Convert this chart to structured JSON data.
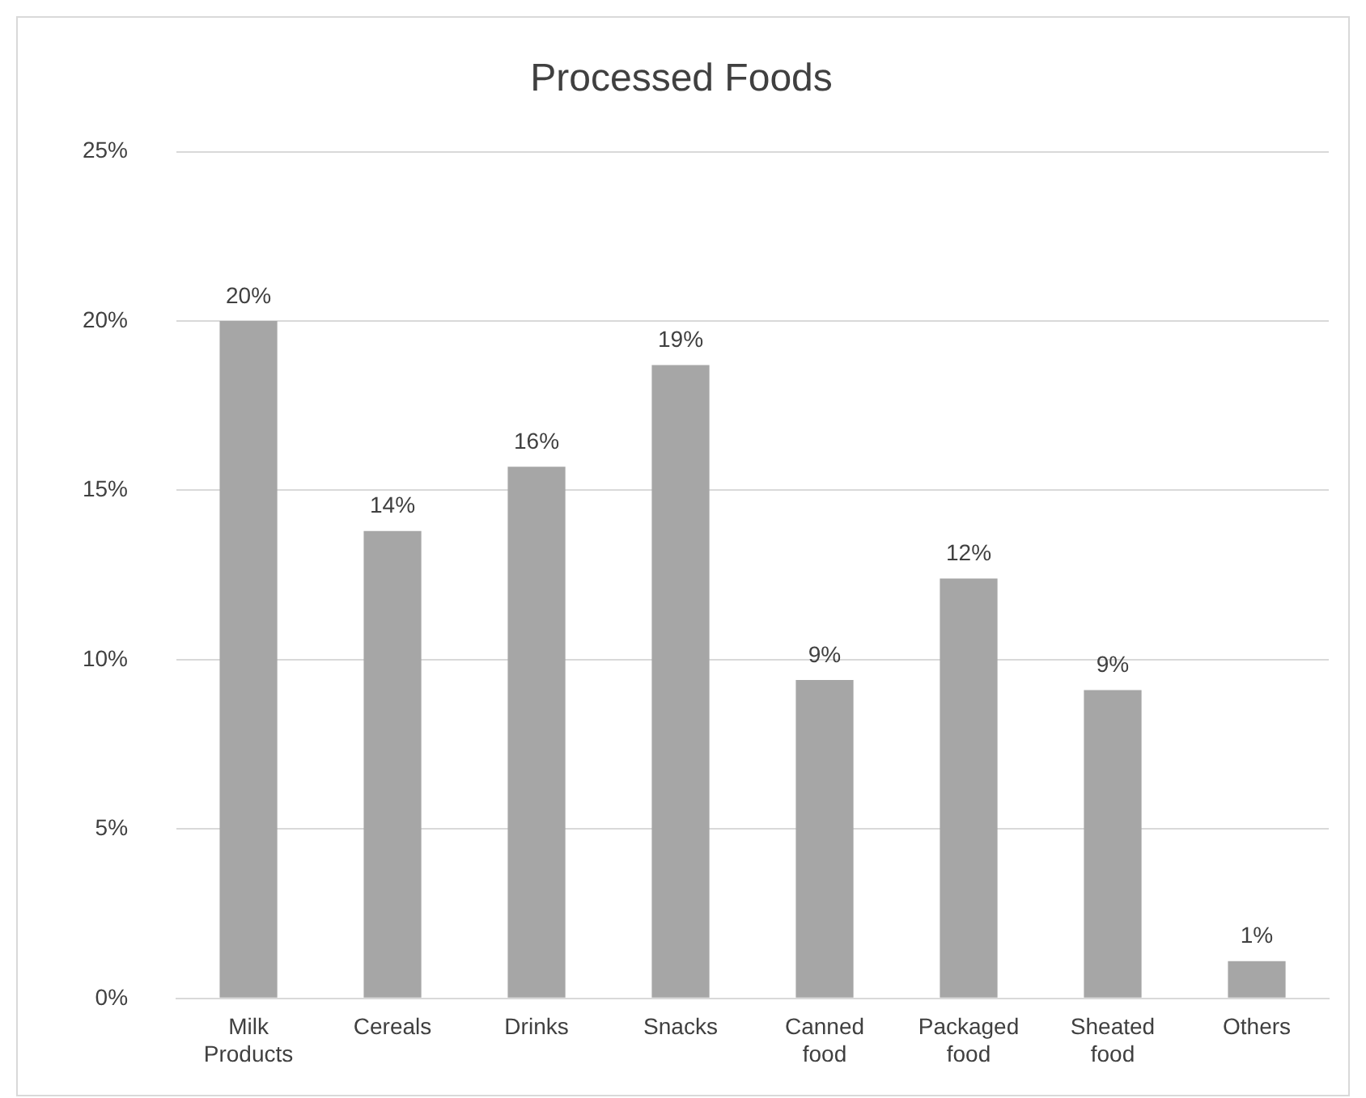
{
  "chart_data": {
    "type": "bar",
    "title": "Processed Foods",
    "categories": [
      "Milk Products",
      "Cereals",
      "Drinks",
      "Snacks",
      "Canned food",
      "Packaged food",
      "Sheated food",
      "Others"
    ],
    "values": [
      20,
      13.8,
      15.7,
      18.7,
      9.4,
      12.4,
      9.1,
      1.1
    ],
    "value_labels": [
      "20%",
      "14%",
      "16%",
      "19%",
      "9%",
      "12%",
      "9%",
      "1%"
    ],
    "color": "#a6a6a6",
    "ylim": [
      0,
      25
    ],
    "yticks": [
      {
        "value": 0,
        "label": "0%"
      },
      {
        "value": 5,
        "label": "5%"
      },
      {
        "value": 10,
        "label": "10%"
      },
      {
        "value": 15,
        "label": "15%"
      },
      {
        "value": 20,
        "label": "20%"
      },
      {
        "value": 25,
        "label": "25%"
      }
    ],
    "grid": "y"
  }
}
